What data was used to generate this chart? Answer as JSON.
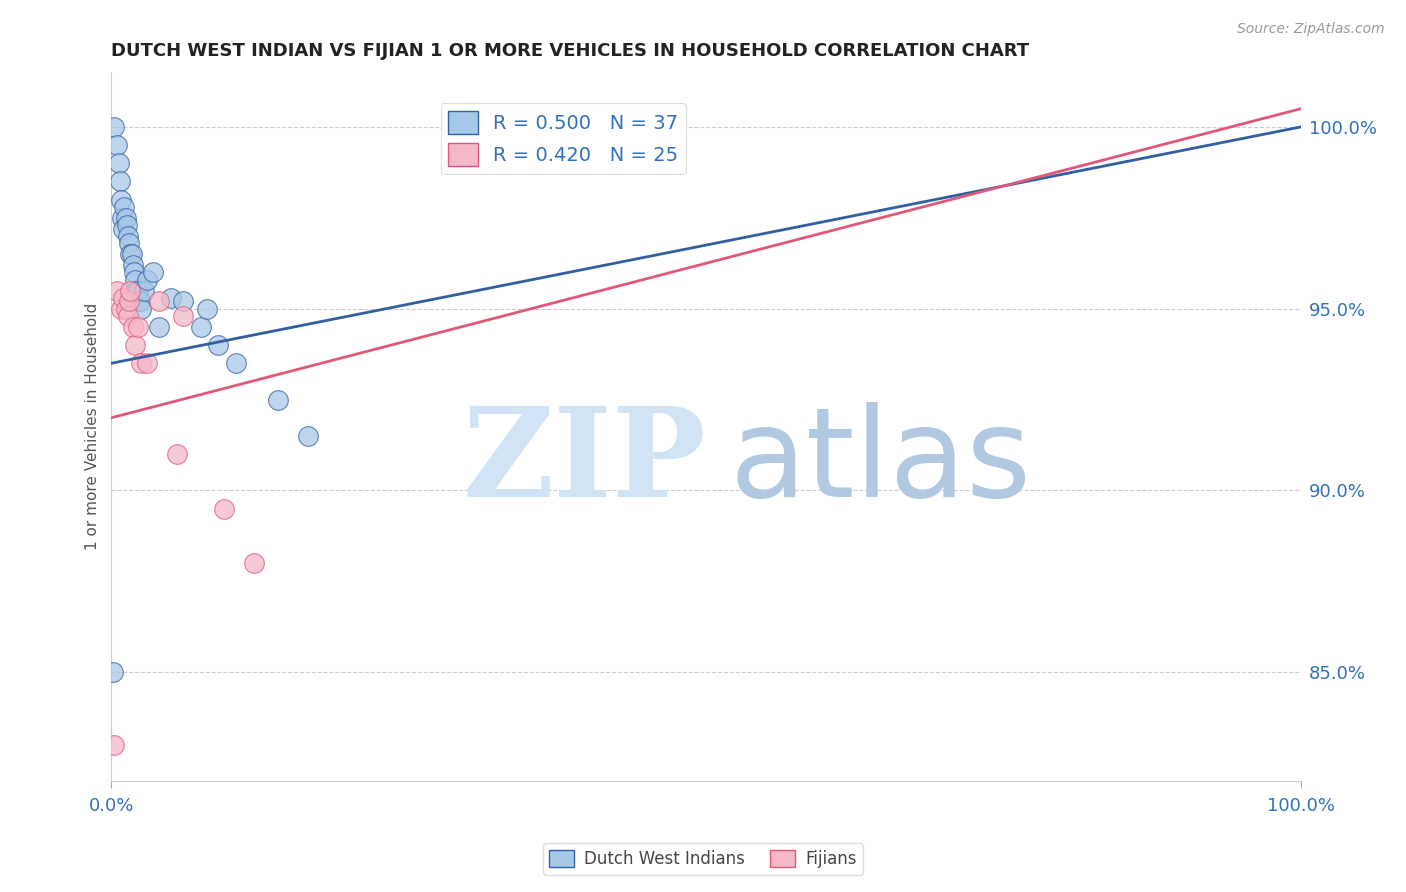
{
  "title": "DUTCH WEST INDIAN VS FIJIAN 1 OR MORE VEHICLES IN HOUSEHOLD CORRELATION CHART",
  "source": "Source: ZipAtlas.com",
  "ylabel": "1 or more Vehicles in Household",
  "xlim": [
    0.0,
    100.0
  ],
  "ylim": [
    82.0,
    101.5
  ],
  "yticks": [
    85.0,
    90.0,
    95.0,
    100.0
  ],
  "ytick_labels": [
    "85.0%",
    "90.0%",
    "95.0%",
    "100.0%"
  ],
  "blue_R": 0.5,
  "blue_N": 37,
  "pink_R": 0.42,
  "pink_N": 25,
  "blue_color": "#a8c8e8",
  "pink_color": "#f4b8c8",
  "blue_line_color": "#3060a0",
  "pink_line_color": "#e05878",
  "legend_label_blue": "Dutch West Indians",
  "legend_label_pink": "Fijians",
  "blue_x": [
    0.15,
    0.25,
    0.5,
    0.6,
    0.7,
    0.8,
    0.9,
    1.0,
    1.1,
    1.2,
    1.3,
    1.4,
    1.5,
    1.6,
    1.7,
    1.8,
    1.9,
    2.0,
    2.1,
    2.2,
    2.4,
    2.5,
    2.7,
    3.0,
    3.5,
    4.0,
    5.0,
    6.0,
    7.5,
    8.0,
    9.0,
    10.5,
    14.0,
    16.5
  ],
  "blue_y": [
    85.0,
    100.0,
    99.5,
    99.0,
    98.5,
    98.0,
    97.5,
    97.2,
    97.8,
    97.5,
    97.3,
    97.0,
    96.8,
    96.5,
    96.5,
    96.2,
    96.0,
    95.8,
    95.5,
    95.5,
    95.2,
    95.0,
    95.5,
    95.8,
    96.0,
    94.5,
    95.3,
    95.2,
    94.5,
    95.0,
    94.0,
    93.5,
    92.5,
    91.5
  ],
  "pink_x": [
    0.2,
    0.5,
    0.8,
    1.0,
    1.2,
    1.4,
    1.5,
    1.6,
    1.8,
    2.0,
    2.2,
    2.5,
    3.0,
    4.0,
    5.5,
    6.0,
    9.5,
    12.0
  ],
  "pink_y": [
    83.0,
    95.5,
    95.0,
    95.3,
    95.0,
    94.8,
    95.2,
    95.5,
    94.5,
    94.0,
    94.5,
    93.5,
    93.5,
    95.2,
    91.0,
    94.8,
    89.5,
    88.0
  ],
  "blue_line_x0": 0.0,
  "blue_line_y0": 93.5,
  "blue_line_x1": 100.0,
  "blue_line_y1": 100.0,
  "pink_line_x0": 0.0,
  "pink_line_y0": 92.0,
  "pink_line_x1": 100.0,
  "pink_line_y1": 100.5,
  "watermark_zip_color": "#d0e4f5",
  "watermark_atlas_color": "#b0c8e0",
  "background_color": "#ffffff"
}
